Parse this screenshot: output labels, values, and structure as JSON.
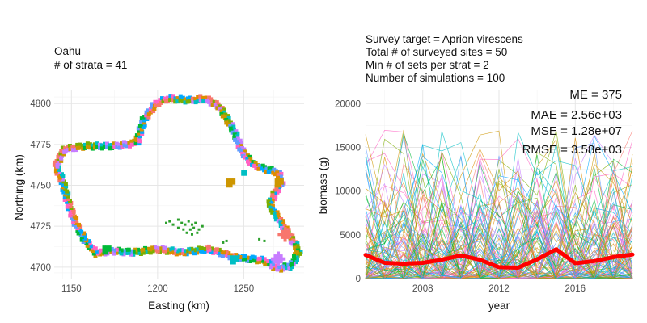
{
  "chart_data": [
    {
      "type": "map",
      "title": [
        "Oahu",
        "# of strata = 41"
      ],
      "xlabel": "Easting (km)",
      "ylabel": "Northing (km)",
      "xlim": [
        1140,
        1285
      ],
      "ylim": [
        4693,
        4808
      ],
      "xticks": [
        1150,
        1200,
        1250
      ],
      "yticks": [
        4700,
        4725,
        4750,
        4775,
        4800
      ],
      "grid": true,
      "palette": [
        "#F8766D",
        "#7CAE00",
        "#00BFC4",
        "#C77CFF",
        "#CD9600",
        "#00BA38",
        "#619CFF",
        "#FF61C3",
        "#00A9FF",
        "#DE8C00"
      ],
      "coastline": [
        [
          1145,
          4772
        ],
        [
          1158,
          4774
        ],
        [
          1175,
          4774
        ],
        [
          1188,
          4776
        ],
        [
          1192,
          4790
        ],
        [
          1199,
          4800
        ],
        [
          1206,
          4803
        ],
        [
          1219,
          4802
        ],
        [
          1228,
          4803
        ],
        [
          1236,
          4798
        ],
        [
          1244,
          4784
        ],
        [
          1249,
          4771
        ],
        [
          1255,
          4763
        ],
        [
          1262,
          4760
        ],
        [
          1270,
          4758
        ],
        [
          1272,
          4752
        ],
        [
          1268,
          4745
        ],
        [
          1265,
          4738
        ],
        [
          1270,
          4730
        ],
        [
          1275,
          4722
        ],
        [
          1282,
          4710
        ],
        [
          1278,
          4701
        ],
        [
          1270,
          4699
        ],
        [
          1262,
          4704
        ],
        [
          1245,
          4706
        ],
        [
          1230,
          4711
        ],
        [
          1214,
          4709
        ],
        [
          1200,
          4711
        ],
        [
          1186,
          4709
        ],
        [
          1172,
          4710
        ],
        [
          1165,
          4708
        ],
        [
          1158,
          4716
        ],
        [
          1152,
          4728
        ],
        [
          1148,
          4740
        ],
        [
          1145,
          4752
        ],
        [
          1141,
          4762
        ],
        [
          1144,
          4768
        ]
      ],
      "inland_cells": [
        [
          1205,
          4727
        ],
        [
          1207,
          4728
        ],
        [
          1209,
          4726
        ],
        [
          1212,
          4729
        ],
        [
          1214,
          4727
        ],
        [
          1216,
          4726
        ],
        [
          1218,
          4728
        ],
        [
          1220,
          4726
        ],
        [
          1222,
          4727
        ],
        [
          1212,
          4724
        ],
        [
          1215,
          4723
        ],
        [
          1219,
          4723
        ],
        [
          1221,
          4724
        ],
        [
          1224,
          4723
        ],
        [
          1226,
          4725
        ],
        [
          1217,
          4721
        ],
        [
          1220,
          4720
        ],
        [
          1223,
          4721
        ],
        [
          1238,
          4715
        ],
        [
          1240,
          4716
        ],
        [
          1259,
          4717
        ],
        [
          1262,
          4716
        ]
      ],
      "extras": [
        {
          "at": [
            1242,
            4752
          ],
          "r": 5,
          "color": "#CD9600"
        },
        {
          "at": [
            1250,
            4758
          ],
          "r": 4,
          "color": "#00BFC4"
        },
        {
          "at": [
            1270,
            4752
          ],
          "r": 5,
          "color": "#CD9600"
        },
        {
          "at": [
            1274,
            4720
          ],
          "r": 6,
          "color": "#F8766D"
        },
        {
          "at": [
            1244,
            4705
          ],
          "r": 5,
          "color": "#00BFC4"
        },
        {
          "at": [
            1270,
            4705
          ],
          "r": 6,
          "color": "#C77CFF"
        },
        {
          "at": [
            1170,
            4711
          ],
          "r": 5,
          "color": "#00BA38"
        }
      ]
    },
    {
      "type": "line",
      "title": [
        "Survey target = Aprion virescens",
        "Total # of surveyed sites = 50",
        "Min # of sets per strat = 2",
        "Number of simulations = 100"
      ],
      "xlabel": "year",
      "ylabel": "biomass (g)",
      "xlim": [
        2005,
        2019
      ],
      "ylim": [
        0,
        21500
      ],
      "xticks": [
        2008,
        2012,
        2016
      ],
      "yticks": [
        0,
        5000,
        10000,
        15000,
        20000
      ],
      "years": [
        2005,
        2006,
        2007,
        2008,
        2009,
        2010,
        2011,
        2012,
        2013,
        2014,
        2015,
        2016,
        2017,
        2018,
        2019
      ],
      "mean_series": [
        2700,
        1800,
        1700,
        1800,
        2150,
        2650,
        2150,
        1300,
        1250,
        2200,
        3350,
        1750,
        2000,
        2450,
        2750
      ],
      "stats": [
        "ME =  375",
        "MAE = 2.56e+03",
        "MSE = 1.28e+07",
        "RMSE = 3.58e+03"
      ],
      "simulations": 100,
      "grid": true,
      "mean_color": "#FF0000"
    }
  ],
  "tick_format": {
    "thousands": false
  }
}
